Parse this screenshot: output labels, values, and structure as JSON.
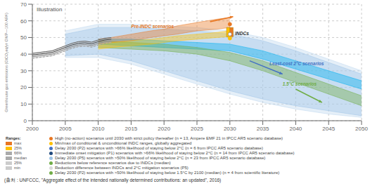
{
  "chart_data": {
    "type": "area",
    "title": "Illustration",
    "y_label": "Greenhouse gas emissions (GtCO₂eq/yr GWP—100 AR4)",
    "caption": "(출처 : UNFCCC, \"Aggregate effect of the intended nationally determined contributions: an updated\", 2016)",
    "xlim": [
      2000,
      2050
    ],
    "ylim": [
      0,
      70
    ],
    "xticks": [
      2000,
      2005,
      2010,
      2015,
      2020,
      2025,
      2030,
      2035,
      2040,
      2045,
      2050
    ],
    "yticks": [
      0,
      10,
      20,
      30,
      40,
      50,
      60,
      70
    ],
    "grid": true,
    "series": [
      {
        "type": "range",
        "color": "#bdd7ee",
        "x": [
          2005,
          2010,
          2015,
          2020,
          2025,
          2030,
          2035,
          2040,
          2045,
          2050
        ],
        "lower": [
          38,
          38,
          34,
          28,
          22,
          16,
          11,
          7,
          4,
          2
        ],
        "upper": [
          54,
          58,
          58,
          57,
          56,
          54,
          50,
          44,
          37,
          30
        ]
      },
      {
        "type": "range",
        "color": "#9dc3e6",
        "x": [
          2005,
          2010,
          2015,
          2020,
          2025,
          2030,
          2035,
          2040,
          2045,
          2050
        ],
        "lower": [
          39,
          40,
          36,
          30,
          24,
          18,
          13,
          9,
          6,
          3
        ],
        "upper": [
          52,
          56,
          56,
          55,
          54,
          52,
          48,
          42,
          35,
          28
        ]
      },
      {
        "type": "range",
        "color": "#00b0f0",
        "x": [
          2010,
          2015,
          2020,
          2025,
          2030,
          2035,
          2040,
          2045,
          2050
        ],
        "lower": [
          46,
          45,
          44,
          43,
          42,
          37,
          31,
          25,
          19
        ],
        "upper": [
          49,
          49,
          48,
          47,
          46,
          42,
          36,
          30,
          24
        ]
      },
      {
        "type": "range",
        "color": "#70ad47",
        "x": [
          2010,
          2015,
          2020,
          2025,
          2030,
          2035,
          2040,
          2045,
          2050
        ],
        "lower": [
          44,
          43,
          42,
          40,
          36,
          30,
          23,
          16,
          9
        ],
        "upper": [
          48,
          47,
          46,
          44,
          41,
          36,
          29,
          22,
          15
        ]
      },
      {
        "type": "range",
        "color": "#e87722",
        "x": [
          2010,
          2012,
          2015,
          2018,
          2020,
          2022,
          2025,
          2028,
          2030
        ],
        "lower": [
          46,
          47,
          48,
          50,
          51,
          52,
          54,
          55,
          56
        ],
        "upper": [
          49,
          50,
          52,
          54,
          55,
          57,
          59,
          61,
          62
        ]
      },
      {
        "type": "range",
        "color": "#ffc000",
        "x": [
          2010,
          2012,
          2015,
          2018,
          2020,
          2022,
          2025,
          2028,
          2030
        ],
        "lower": [
          43,
          44,
          45,
          46,
          47,
          48,
          49,
          50,
          50.5
        ],
        "upper": [
          46,
          47,
          48,
          49,
          50,
          51,
          52,
          53,
          54
        ]
      },
      {
        "type": "range",
        "color": "#bbbbbb",
        "x": [
          2000,
          2001,
          2002,
          2003,
          2004,
          2005,
          2006,
          2007,
          2008,
          2009,
          2010,
          2011,
          2012
        ],
        "lower": [
          37.5,
          38.0,
          38.5,
          39.0,
          40.5,
          42.0,
          43.5,
          44.5,
          44.8,
          44.2,
          45.5,
          46.5,
          47.0
        ],
        "upper": [
          40.5,
          41.0,
          41.5,
          42.0,
          43.5,
          45.0,
          46.5,
          47.5,
          47.8,
          47.2,
          48.5,
          49.5,
          50.0
        ]
      },
      {
        "type": "line",
        "color": "#666666",
        "line_style": "solid",
        "x": [
          2000,
          2001,
          2002,
          2003,
          2004,
          2005,
          2006,
          2007,
          2008,
          2009,
          2010,
          2011,
          2012
        ],
        "values": [
          40.5,
          41.0,
          41.5,
          42.0,
          43.5,
          45.0,
          46.5,
          47.5,
          47.8,
          47.2,
          48.5,
          49.5,
          50.0
        ]
      },
      {
        "type": "line",
        "color": "#888888",
        "line_style": "solid",
        "x": [
          2000,
          2001,
          2002,
          2003,
          2004,
          2005,
          2006,
          2007,
          2008,
          2009,
          2010,
          2011,
          2012
        ],
        "values": [
          38.5,
          39.0,
          39.5,
          40.0,
          41.5,
          43.0,
          44.5,
          45.5,
          45.8,
          45.2,
          46.5,
          47.5,
          48.0
        ]
      },
      {
        "type": "line",
        "color": "#444444",
        "line_style": "solid",
        "x": [
          2000,
          2001,
          2002,
          2003,
          2004,
          2005,
          2006,
          2007,
          2008,
          2009,
          2010,
          2011,
          2012
        ],
        "values": [
          39.5,
          40.0,
          40.5,
          41.0,
          42.5,
          44.0,
          45.5,
          46.5,
          46.8,
          46.2,
          47.5,
          48.5,
          49.0
        ]
      },
      {
        "type": "line",
        "color": "#999999",
        "line_style": "dashed",
        "x": [
          2000,
          2001,
          2002,
          2003,
          2004,
          2005,
          2006,
          2007,
          2008,
          2009,
          2010,
          2011,
          2012
        ],
        "values": [
          37.5,
          38.0,
          38.5,
          39.0,
          40.5,
          42.0,
          43.5,
          44.5,
          44.8,
          44.2,
          45.5,
          46.5,
          47.0
        ]
      }
    ],
    "indc": {
      "x": 2030,
      "bar_lower": 50.5,
      "bar_upper": 56.0,
      "bar_colors": [
        "#ffc000",
        "#e87722"
      ],
      "circles": [
        {
          "y": 58.0,
          "color": "#e87722"
        },
        {
          "y": 49.5,
          "color": "#ffc000"
        },
        {
          "y": 52.0,
          "color": "#ffffff"
        }
      ]
    },
    "arrows": [
      {
        "from": [
          2027,
          59.5
        ],
        "to": [
          2030.5,
          62.5
        ],
        "color": "#e87722"
      },
      {
        "from": [
          2033,
          36
        ],
        "to": [
          2038,
          28
        ],
        "color": "#4472c4"
      },
      {
        "from": [
          2040,
          19
        ],
        "to": [
          2044,
          11
        ],
        "color": "#70ad47"
      }
    ],
    "annotations": [
      {
        "text": "Pre-INDC scenarios",
        "x": 2015,
        "y": 56.5,
        "color": "#e87722"
      },
      {
        "text": "INDCs",
        "x": 2030.8,
        "y": 52.0,
        "color": "#333333"
      },
      {
        "text": "Least-cost 2°C scenarios",
        "x": 2036,
        "y": 34,
        "color": "#4472c4"
      },
      {
        "text": "1.5°C scenarios",
        "x": 2038,
        "y": 22,
        "color": "#70ad47"
      }
    ],
    "ranges": {
      "title": "Ranges:",
      "items": [
        {
          "label": "max",
          "color": "#e87722"
        },
        {
          "label": "25%",
          "color": "#ffc000"
        },
        {
          "label": "66%",
          "color": "#aaaaaa"
        },
        {
          "label": "median",
          "color": "#aaaaaa"
        },
        {
          "label": "25%",
          "color": "#cccccc"
        },
        {
          "label": "min",
          "color": "#cccccc"
        }
      ]
    },
    "legend_entries": [
      {
        "label": "High (no-action) scenarios until 2030 with strict policy thereafter (n = 13, Ampere EMF 21 in IPCC AR5 scenario database)",
        "color": "#e87722"
      },
      {
        "label": "Min/max of conditional & unconditional INDC ranges, globally aggregated",
        "color": "#ffc000"
      },
      {
        "label": "Delay 2030 (P2) scenarios with >66% likelihood of staying below 2°C (n = 6 from IPCC AR5 scenario database)",
        "color": "#4472c4"
      },
      {
        "label": "Immediate onset mitigation (P1) scenarios with >66% likelihood of staying below 2°C (n = 14 from IPCC AR5 scenario database)",
        "color": "#1f497d"
      },
      {
        "label": "Delay 2030 (P5) scenarios with >50% likelihood of staying below 2°C (n = 23 from IPCC AR5 scenario database)",
        "color": "#9dc3e6"
      },
      {
        "label": "Reductions below reference scenarios due to INDCs (median)",
        "color": "#70ad47"
      },
      {
        "label": "Reduction difference between INDCs and 2°C mitigation scenarios (P5)",
        "color": "#d9d9d9"
      },
      {
        "label": "Delay 2030 (P2) scenarios with >50% likelihood of staying below 1.5°C by 2100 (median) (n = 4 from scientific literature)",
        "color": "#70ad47"
      }
    ]
  }
}
